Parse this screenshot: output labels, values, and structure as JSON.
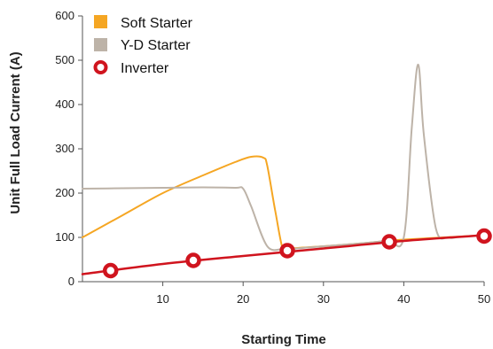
{
  "chart_data": {
    "type": "line",
    "xlabel": "Starting Time",
    "ylabel": "Unit  Full Load Current (A)",
    "xlim": [
      0,
      50
    ],
    "ylim": [
      0,
      600
    ],
    "xticks": [
      10,
      20,
      30,
      40,
      50
    ],
    "yticks": [
      0,
      100,
      200,
      300,
      400,
      500,
      600
    ],
    "grid": false,
    "legend_position": "top-left",
    "series": [
      {
        "name": "Soft Starter",
        "color": "#f5a623",
        "marker": "square",
        "x": [
          0,
          5,
          10,
          15,
          19,
          21,
          22.5,
          23,
          24,
          25,
          26,
          30,
          35,
          38,
          40,
          45,
          50
        ],
        "y": [
          100,
          150,
          200,
          240,
          270,
          282,
          280,
          262,
          160,
          70,
          75,
          80,
          87,
          92,
          95,
          100,
          105
        ]
      },
      {
        "name": "Y-D Starter",
        "color": "#bdb3a8",
        "marker": "square",
        "x": [
          0,
          5,
          10,
          15,
          19,
          20,
          21,
          23,
          25,
          26,
          30,
          35,
          38,
          40,
          41,
          41.8,
          42.5,
          44,
          45.5,
          46.5
        ],
        "y": [
          210,
          211,
          212,
          213,
          212,
          210,
          170,
          80,
          74,
          74,
          80,
          87,
          93,
          100,
          350,
          490,
          330,
          120,
          100,
          100
        ]
      },
      {
        "name": "Inverter",
        "color": "#d0141e",
        "marker": "ring",
        "x": [
          0,
          10,
          20,
          30,
          40,
          50
        ],
        "y": [
          17,
          40,
          58,
          75,
          92,
          105
        ],
        "marker_points": [
          {
            "x": 3.5,
            "y": 25
          },
          {
            "x": 13.8,
            "y": 48
          },
          {
            "x": 25.5,
            "y": 70
          },
          {
            "x": 38.2,
            "y": 90
          },
          {
            "x": 50,
            "y": 103
          }
        ]
      }
    ]
  }
}
